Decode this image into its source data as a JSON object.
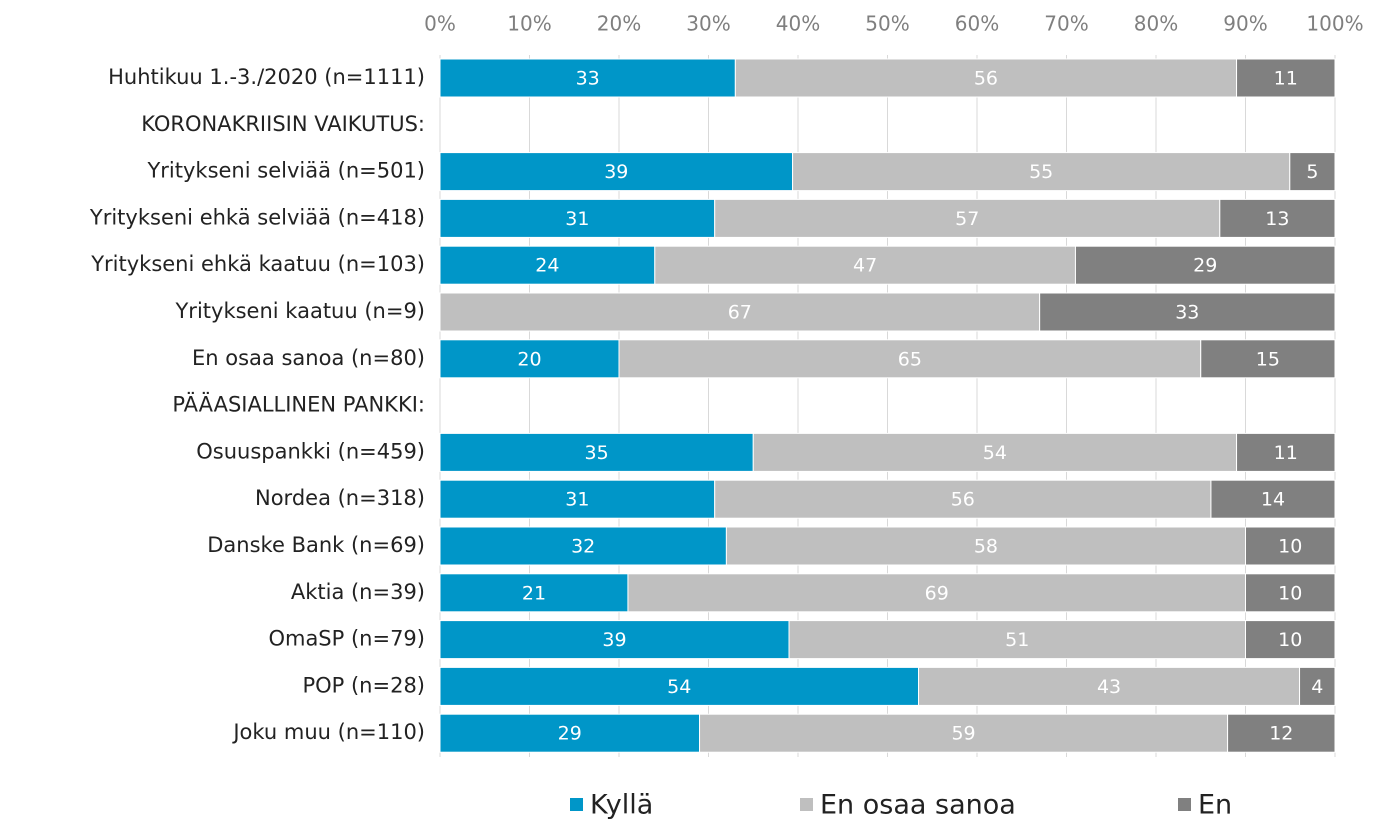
{
  "chart_data": {
    "type": "bar",
    "orientation": "horizontal",
    "stacked": "percent",
    "categories": [
      "Huhtikuu 1.-3./2020 (n=1111)",
      "KORONAKRIISIN VAIKUTUS:",
      "Yritykseni selviää (n=501)",
      "Yritykseni ehkä selviää (n=418)",
      "Yritykseni ehkä kaatuu (n=103)",
      "Yritykseni kaatuu (n=9)",
      "En osaa sanoa (n=80)",
      "PÄÄASIALLINEN PANKKI:",
      "Osuuspankki (n=459)",
      "Nordea (n=318)",
      "Danske Bank (n=69)",
      "Aktia (n=39)",
      "OmaSP (n=79)",
      "POP (n=28)",
      "Joku muu (n=110)"
    ],
    "series": [
      {
        "name": "Kyllä",
        "color": "#0096c8",
        "values": [
          33,
          null,
          39,
          31,
          24,
          null,
          20,
          null,
          35,
          31,
          32,
          21,
          39,
          54,
          29
        ]
      },
      {
        "name": "En osaa sanoa",
        "color": "#bfbfbf",
        "values": [
          56,
          null,
          55,
          57,
          47,
          67,
          65,
          null,
          54,
          56,
          58,
          69,
          51,
          43,
          59
        ]
      },
      {
        "name": "En",
        "color": "#808080",
        "values": [
          11,
          null,
          5,
          13,
          29,
          33,
          15,
          null,
          11,
          14,
          10,
          10,
          10,
          4,
          12
        ]
      }
    ],
    "xlim": [
      0,
      100
    ],
    "xticks": [
      {
        "value": 0,
        "label": "0%"
      },
      {
        "value": 10,
        "label": "10%"
      },
      {
        "value": 20,
        "label": "20%"
      },
      {
        "value": 30,
        "label": "30%"
      },
      {
        "value": 40,
        "label": "40%"
      },
      {
        "value": 50,
        "label": "50%"
      },
      {
        "value": 60,
        "label": "60%"
      },
      {
        "value": 70,
        "label": "70%"
      },
      {
        "value": 80,
        "label": "80%"
      },
      {
        "value": 90,
        "label": "90%"
      },
      {
        "value": 100,
        "label": "100%"
      }
    ],
    "grid": true,
    "legend": "bottom"
  }
}
